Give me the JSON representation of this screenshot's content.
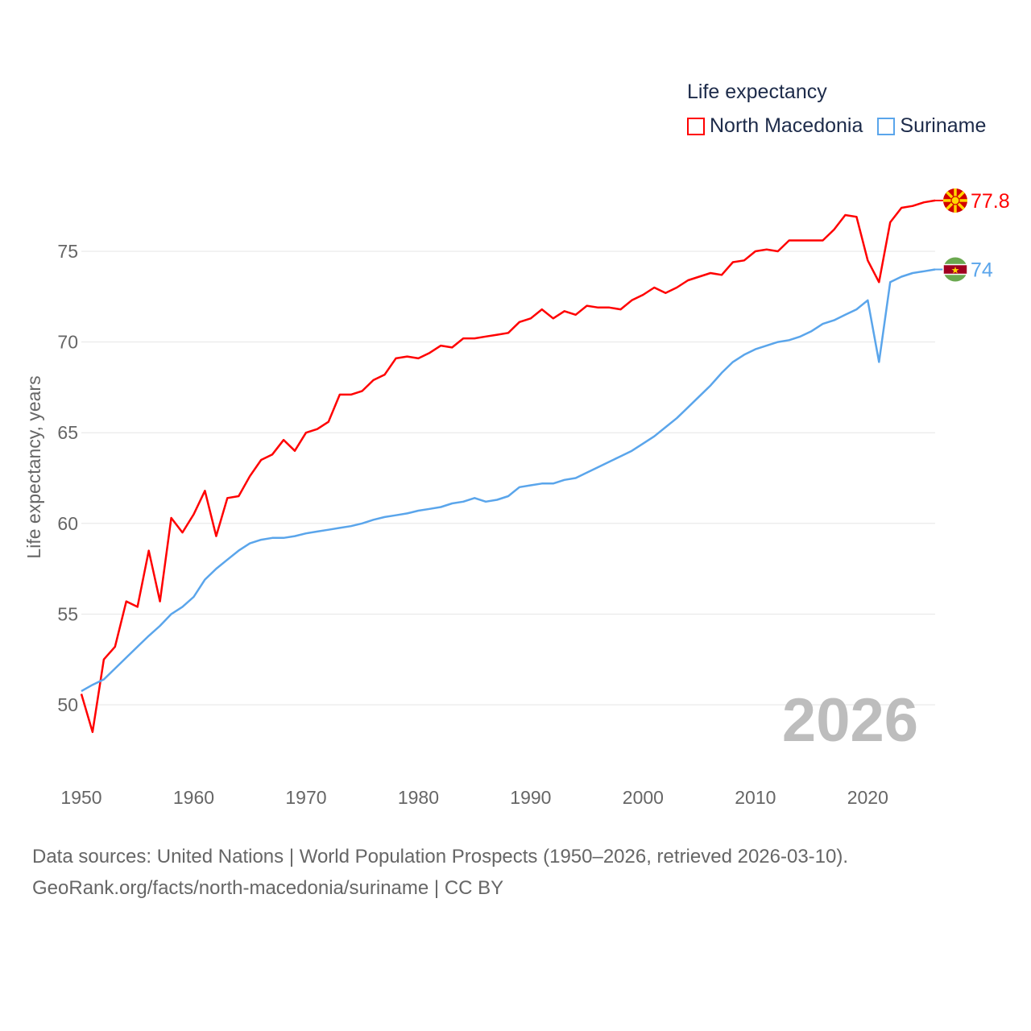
{
  "chart_data": {
    "type": "line",
    "title": "Life expectancy",
    "xlabel": "",
    "ylabel": "Life expectancy, years",
    "xlim": [
      1950,
      2026
    ],
    "ylim": [
      47,
      79
    ],
    "xticks": [
      1950,
      1960,
      1970,
      1980,
      1990,
      2000,
      2010,
      2020
    ],
    "yticks": [
      50,
      55,
      60,
      65,
      70,
      75
    ],
    "grid": true,
    "legend_position": "top-right",
    "current_year": "2026",
    "x": [
      1950,
      1951,
      1952,
      1953,
      1954,
      1955,
      1956,
      1957,
      1958,
      1959,
      1960,
      1961,
      1962,
      1963,
      1964,
      1965,
      1966,
      1967,
      1968,
      1969,
      1970,
      1971,
      1972,
      1973,
      1974,
      1975,
      1976,
      1977,
      1978,
      1979,
      1980,
      1981,
      1982,
      1983,
      1984,
      1985,
      1986,
      1987,
      1988,
      1989,
      1990,
      1991,
      1992,
      1993,
      1994,
      1995,
      1996,
      1997,
      1998,
      1999,
      2000,
      2001,
      2002,
      2003,
      2004,
      2005,
      2006,
      2007,
      2008,
      2009,
      2010,
      2011,
      2012,
      2013,
      2014,
      2015,
      2016,
      2017,
      2018,
      2019,
      2020,
      2021,
      2022,
      2023,
      2024,
      2025,
      2026
    ],
    "series": [
      {
        "name": "North Macedonia",
        "color": "#ff0000",
        "end_label": "77.8",
        "values": [
          50.6,
          48.5,
          52.5,
          53.2,
          55.7,
          55.4,
          58.5,
          55.7,
          60.3,
          59.5,
          60.5,
          61.8,
          59.3,
          61.4,
          61.5,
          62.6,
          63.5,
          63.8,
          64.6,
          64.0,
          65.0,
          65.2,
          65.6,
          67.1,
          67.1,
          67.3,
          67.9,
          68.2,
          69.1,
          69.2,
          69.1,
          69.4,
          69.8,
          69.7,
          70.2,
          70.2,
          70.3,
          70.4,
          70.5,
          71.1,
          71.3,
          71.8,
          71.3,
          71.7,
          71.5,
          72.0,
          71.9,
          71.9,
          71.8,
          72.3,
          72.6,
          73.0,
          72.7,
          73.0,
          73.4,
          73.6,
          73.8,
          73.7,
          74.4,
          74.5,
          75.0,
          75.1,
          75.0,
          75.6,
          75.6,
          75.6,
          75.6,
          76.2,
          77.0,
          76.9,
          74.5,
          73.3,
          76.6,
          77.4,
          77.5,
          77.7,
          77.8
        ]
      },
      {
        "name": "Suriname",
        "color": "#5aa5eb",
        "end_label": "74",
        "values": [
          50.75,
          51.1,
          51.4,
          52.0,
          52.6,
          53.2,
          53.8,
          54.35,
          55.0,
          55.4,
          55.95,
          56.9,
          57.5,
          58.0,
          58.5,
          58.9,
          59.1,
          59.2,
          59.2,
          59.3,
          59.45,
          59.55,
          59.65,
          59.75,
          59.85,
          60.0,
          60.2,
          60.35,
          60.45,
          60.55,
          60.7,
          60.8,
          60.9,
          61.1,
          61.2,
          61.4,
          61.2,
          61.3,
          61.5,
          62.0,
          62.1,
          62.2,
          62.2,
          62.4,
          62.5,
          62.8,
          63.1,
          63.4,
          63.7,
          64.0,
          64.4,
          64.8,
          65.3,
          65.8,
          66.4,
          67.0,
          67.6,
          68.3,
          68.9,
          69.3,
          69.6,
          69.8,
          70.0,
          70.1,
          70.3,
          70.6,
          71.0,
          71.2,
          71.5,
          71.8,
          72.3,
          68.9,
          73.3,
          73.6,
          73.8,
          73.9,
          74.0
        ]
      }
    ]
  },
  "footer": {
    "line1": "Data sources: United Nations | World Population Prospects (1950–2026, retrieved 2026-03-10).",
    "line2": "GeoRank.org/facts/north-macedonia/suriname | CC BY"
  }
}
